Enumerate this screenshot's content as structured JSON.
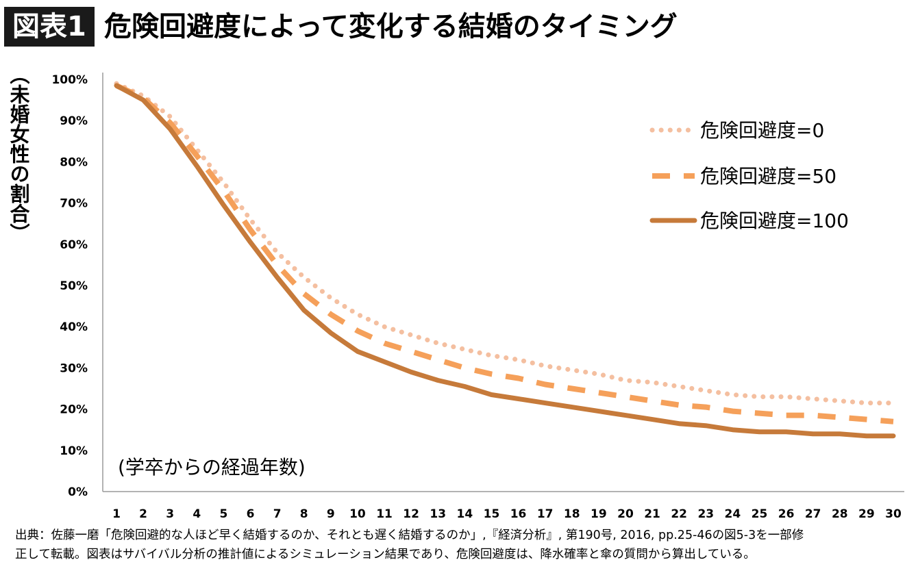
{
  "header": {
    "badge": "図表1",
    "title": "危険回避度によって変化する結婚のタイミング"
  },
  "colors": {
    "series_0": "#f4bfa0",
    "series_50": "#f5a05a",
    "series_100": "#c67a3a"
  },
  "chart_data": {
    "type": "line",
    "title": "危険回避度によって変化する結婚のタイミング",
    "xlabel": "(学卒からの経過年数)",
    "ylabel": "（未婚女性の割合）",
    "x": [
      1,
      2,
      3,
      4,
      5,
      6,
      7,
      8,
      9,
      10,
      11,
      12,
      13,
      14,
      15,
      16,
      17,
      18,
      19,
      20,
      21,
      22,
      23,
      24,
      25,
      26,
      27,
      28,
      29,
      30
    ],
    "ylim": [
      0,
      100
    ],
    "yticks": [
      "0%",
      "10%",
      "20%",
      "30%",
      "40%",
      "50%",
      "60%",
      "70%",
      "80%",
      "90%",
      "100%"
    ],
    "xticks": [
      "1",
      "2",
      "3",
      "4",
      "5",
      "6",
      "7",
      "8",
      "9",
      "10",
      "11",
      "12",
      "13",
      "14",
      "15",
      "16",
      "17",
      "18",
      "19",
      "20",
      "21",
      "22",
      "23",
      "24",
      "25",
      "26",
      "27",
      "28",
      "29",
      "30"
    ],
    "legend_position": "top-right",
    "grid": false,
    "series": [
      {
        "name": "危険回避度=0",
        "style": "dotted",
        "values": [
          99,
          96,
          91,
          83,
          75,
          66,
          58,
          52,
          47,
          43,
          40,
          38,
          36,
          34.5,
          33,
          32,
          30.5,
          29.5,
          28.5,
          27,
          26.5,
          25.5,
          24.5,
          23.5,
          23,
          23,
          22.5,
          22,
          21.5,
          21.5
        ]
      },
      {
        "name": "危険回避度=50",
        "style": "dashed",
        "values": [
          98.5,
          95.5,
          89.5,
          81.5,
          73,
          63.5,
          55,
          48,
          43,
          39,
          36,
          34,
          32,
          30,
          28.5,
          27.5,
          26,
          25,
          24,
          23,
          22,
          21,
          20.5,
          19.5,
          19,
          18.5,
          18.5,
          18,
          17.5,
          17
        ]
      },
      {
        "name": "危険回避度=100",
        "style": "solid",
        "values": [
          98.5,
          95,
          88,
          79,
          69.5,
          60.5,
          52,
          44,
          38.5,
          34,
          31.5,
          29,
          27,
          25.5,
          23.5,
          22.5,
          21.5,
          20.5,
          19.5,
          18.5,
          17.5,
          16.5,
          16,
          15,
          14.5,
          14.5,
          14,
          14,
          13.5,
          13.5
        ]
      }
    ]
  },
  "footer": {
    "line1": "出典：佐藤一磨「危険回避的な人ほど早く結婚するのか、それとも遅く結婚するのか」,『経済分析』, 第190号, 2016, pp.25-46の図5-3を一部修",
    "line2": "正して転載。図表はサバイバル分析の推計値によるシミュレーション結果であり、危険回避度は、降水確率と傘の質問から算出している。"
  }
}
